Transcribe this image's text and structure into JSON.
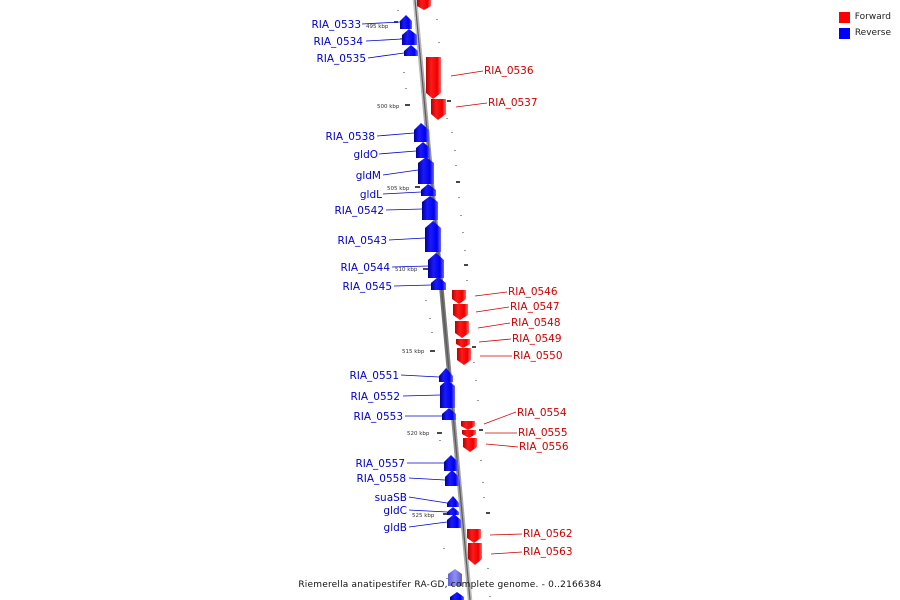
{
  "legend": {
    "forward_label": "Forward",
    "reverse_label": "Reverse",
    "forward_color": "#ff0000",
    "reverse_color": "#0000ff"
  },
  "caption": "Riemerella anatipestifer RA-GD, complete genome. - 0..2166384",
  "scale_labels": [
    "495 kbp",
    "500 kbp",
    "505 kbp",
    "510 kbp",
    "515 kbp",
    "520 kbp",
    "525 kbp"
  ],
  "genes": {
    "reverse": [
      "RIA_0533",
      "RIA_0534",
      "RIA_0535",
      "RIA_0538",
      "gldO",
      "gldM",
      "gldL",
      "RIA_0542",
      "RIA_0543",
      "RIA_0544",
      "RIA_0545",
      "RIA_0551",
      "RIA_0552",
      "RIA_0553",
      "RIA_0557",
      "RIA_0558",
      "suaSB",
      "gldC",
      "gldB"
    ],
    "forward": [
      "RIA_0536",
      "RIA_0537",
      "RIA_0546",
      "RIA_0547",
      "RIA_0548",
      "RIA_0549",
      "RIA_0550",
      "RIA_0554",
      "RIA_0555",
      "RIA_0556",
      "RIA_0562",
      "RIA_0563"
    ]
  }
}
